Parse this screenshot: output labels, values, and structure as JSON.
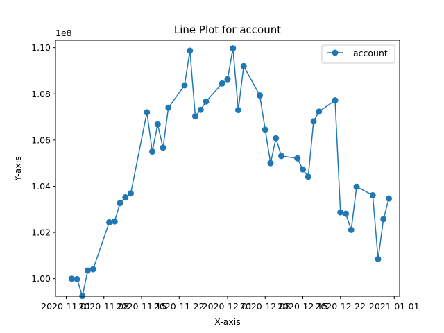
{
  "chart_data": {
    "type": "line",
    "title": "Line Plot for account",
    "xlabel": "X-axis",
    "ylabel": "Y-axis",
    "y_offset_label": "1e8",
    "y_scale": 100000000,
    "legend_position": "upper-right",
    "grid": false,
    "color": "#1f77b4",
    "marker": "circle",
    "xlim": [
      "2020-10-30",
      "2021-01-02"
    ],
    "ylim": [
      0.9924,
      1.1032
    ],
    "x_ticks": [
      "2020-11-01",
      "2020-11-08",
      "2020-11-15",
      "2020-11-22",
      "2020-12-01",
      "2020-12-08",
      "2020-12-15",
      "2020-12-22",
      "2021-01-01"
    ],
    "y_ticks": [
      1.0,
      1.02,
      1.04,
      1.06,
      1.08,
      1.1
    ],
    "y_tick_labels": [
      "1.00",
      "1.02",
      "1.04",
      "1.06",
      "1.08",
      "1.10"
    ],
    "series": [
      {
        "name": "account",
        "x": [
          "2020-11-02",
          "2020-11-03",
          "2020-11-04",
          "2020-11-05",
          "2020-11-06",
          "2020-11-09",
          "2020-11-10",
          "2020-11-11",
          "2020-11-12",
          "2020-11-13",
          "2020-11-16",
          "2020-11-17",
          "2020-11-18",
          "2020-11-19",
          "2020-11-20",
          "2020-11-23",
          "2020-11-24",
          "2020-11-25",
          "2020-11-26",
          "2020-11-27",
          "2020-11-30",
          "2020-12-01",
          "2020-12-02",
          "2020-12-03",
          "2020-12-04",
          "2020-12-07",
          "2020-12-08",
          "2020-12-09",
          "2020-12-10",
          "2020-12-11",
          "2020-12-14",
          "2020-12-15",
          "2020-12-16",
          "2020-12-17",
          "2020-12-18",
          "2020-12-21",
          "2020-12-22",
          "2020-12-23",
          "2020-12-24",
          "2020-12-25",
          "2020-12-28",
          "2020-12-29",
          "2020-12-30",
          "2020-12-31"
        ],
        "values": [
          1.0,
          0.9998,
          0.9925,
          1.0035,
          1.0041,
          1.0244,
          1.0248,
          1.0327,
          1.0352,
          1.0369,
          1.072,
          1.055,
          1.0668,
          1.0567,
          1.074,
          1.0837,
          1.0987,
          1.0703,
          1.0731,
          1.0767,
          1.0845,
          1.0863,
          1.0997,
          1.073,
          1.092,
          1.0793,
          1.0645,
          1.05,
          1.0608,
          1.0531,
          1.0521,
          1.0473,
          1.0441,
          1.0681,
          1.0723,
          1.0772,
          1.0287,
          1.0281,
          1.0211,
          1.0398,
          1.0361,
          1.0085,
          1.0258,
          1.0347
        ]
      }
    ]
  }
}
